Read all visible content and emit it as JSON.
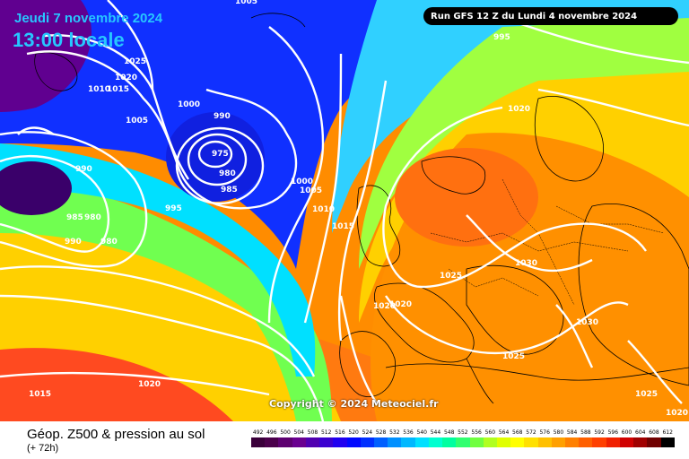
{
  "header": {
    "date_text": "Jeudi 7 novembre 2024",
    "hour_text": "13:00 locale",
    "run_text": "Run GFS 12 Z du Lundi 4 novembre 2024"
  },
  "copyright": "Copyright © 2024 Meteociel.fr",
  "legend": {
    "title": "Géop. Z500 & pression au sol",
    "subtitle": "(+ 72h)",
    "scale_labels": [
      "492",
      "496",
      "500",
      "504",
      "508",
      "512",
      "516",
      "520",
      "524",
      "528",
      "532",
      "536",
      "540",
      "544",
      "548",
      "552",
      "556",
      "560",
      "564",
      "568",
      "572",
      "576",
      "580",
      "584",
      "588",
      "592",
      "596",
      "600",
      "604",
      "608",
      "612"
    ],
    "scale_colors": [
      "#3a003a",
      "#4b004b",
      "#5d0070",
      "#6a0090",
      "#5000b0",
      "#3a00d0",
      "#2000f0",
      "#0008ff",
      "#0030ff",
      "#0060ff",
      "#0090ff",
      "#00b8ff",
      "#00e0ff",
      "#00ffd0",
      "#00ffa0",
      "#30ff70",
      "#70ff40",
      "#b0ff20",
      "#e0ff00",
      "#ffff00",
      "#ffe000",
      "#ffc000",
      "#ffa000",
      "#ff8000",
      "#ff6000",
      "#ff4000",
      "#f02000",
      "#d00000",
      "#a00000",
      "#700000",
      "#000000"
    ]
  },
  "isobar_labels": [
    "1005",
    "1025",
    "1020",
    "1010",
    "1015",
    "1005",
    "1000",
    "990",
    "975",
    "980",
    "985",
    "990",
    "1000",
    "1005",
    "1010",
    "1015",
    "995",
    "985",
    "980",
    "990",
    "980",
    "995",
    "1020",
    "1030",
    "1025",
    "1020",
    "1020",
    "1030",
    "1025",
    "1020",
    "1015",
    "1025",
    "1020"
  ]
}
